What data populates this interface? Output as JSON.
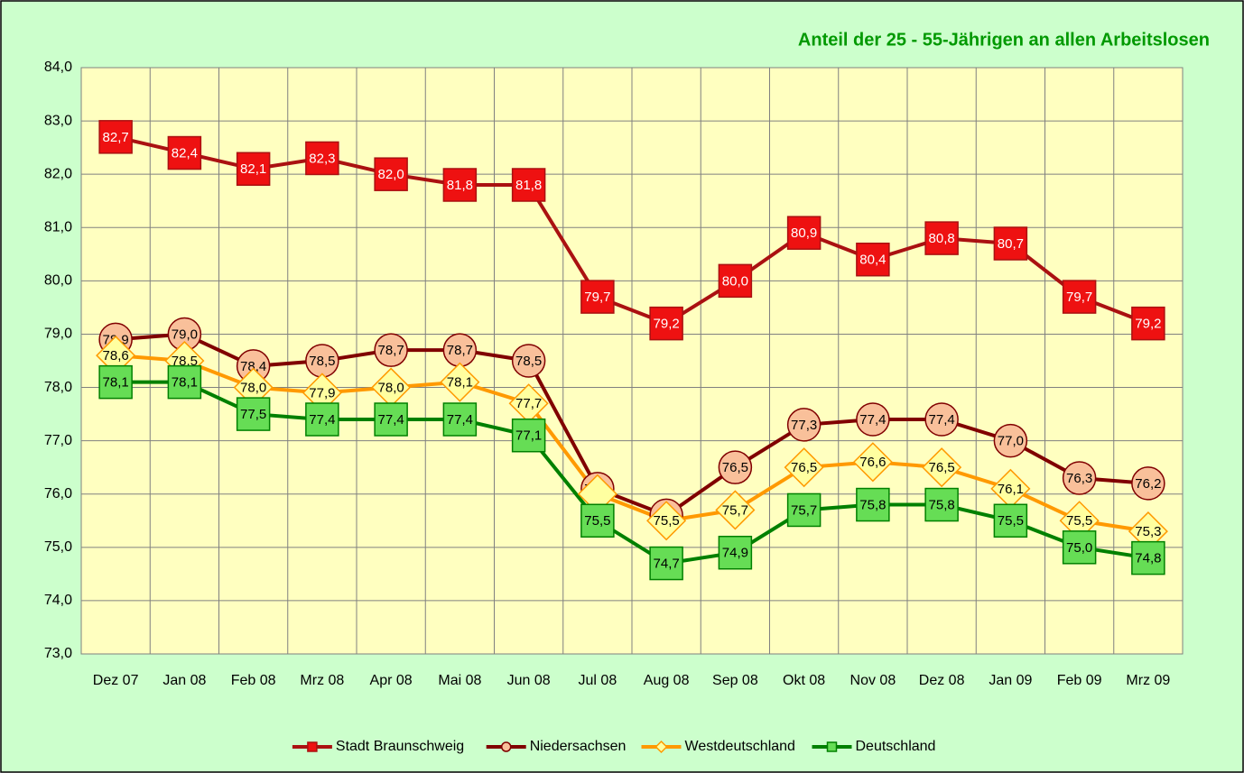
{
  "chart_data": {
    "type": "line",
    "title": "Anteil der 25 - 55-Jährigen an allen Arbeitslosen",
    "categories": [
      "Dez 07",
      "Jan 08",
      "Feb 08",
      "Mrz 08",
      "Apr 08",
      "Mai 08",
      "Jun 08",
      "Jul 08",
      "Aug 08",
      "Sep 08",
      "Okt 08",
      "Nov 08",
      "Dez 08",
      "Jan 09",
      "Feb 09",
      "Mrz 09"
    ],
    "series": [
      {
        "name": "Stadt Braunschweig",
        "color": "#aa1111",
        "marker": "square",
        "marker_color": "#ee1111",
        "values": [
          82.7,
          82.4,
          82.1,
          82.3,
          82.0,
          81.8,
          81.8,
          79.7,
          79.2,
          80.0,
          80.9,
          80.4,
          80.8,
          80.7,
          79.7,
          79.2
        ],
        "value_labels": [
          "82,7",
          "82,4",
          "82,1",
          "82,3",
          "82,0",
          "81,8",
          "81,8",
          "79,7",
          "79,2",
          "80,0",
          "80,9",
          "80,4",
          "80,8",
          "80,7",
          "79,7",
          "79,2"
        ]
      },
      {
        "name": "Niedersachsen",
        "color": "#800000",
        "marker": "circle",
        "marker_color": "#f9c09a",
        "values": [
          78.9,
          79.0,
          78.4,
          78.5,
          78.7,
          78.7,
          78.5,
          76.1,
          75.6,
          76.5,
          77.3,
          77.4,
          77.4,
          77.0,
          76.3,
          76.2
        ],
        "value_labels": [
          "78,9",
          "79,0",
          "78,4",
          "78,5",
          "78,7",
          "78,7",
          "78,5",
          "76,1",
          null,
          "76,5",
          "77,3",
          "77,4",
          "77,4",
          "77,0",
          "76,3",
          "76,2"
        ]
      },
      {
        "name": "Westdeutschland",
        "color": "#ff9900",
        "marker": "diamond",
        "marker_color": "#ffffa0",
        "values": [
          78.6,
          78.5,
          78.0,
          77.9,
          78.0,
          78.1,
          77.7,
          76.0,
          75.5,
          75.7,
          76.5,
          76.6,
          76.5,
          76.1,
          75.5,
          75.3
        ],
        "value_labels": [
          "78,6",
          "78,5",
          "78,0",
          "77,9",
          "78,0",
          "78,1",
          "77,7",
          null,
          "75,5",
          "75,7",
          "76,5",
          "76,6",
          "76,5",
          "76,1",
          "75,5",
          "75,3"
        ]
      },
      {
        "name": "Deutschland",
        "color": "#008000",
        "marker": "square",
        "marker_color": "#66dd55",
        "values": [
          78.1,
          78.1,
          77.5,
          77.4,
          77.4,
          77.4,
          77.1,
          75.5,
          74.7,
          74.9,
          75.7,
          75.8,
          75.8,
          75.5,
          75.0,
          74.8
        ],
        "value_labels": [
          "78,1",
          "78,1",
          "77,5",
          "77,4",
          "77,4",
          "77,4",
          "77,1",
          "75,5",
          "74,7",
          "74,9",
          "75,7",
          "75,8",
          "75,8",
          "75,5",
          "75,0",
          "74,8"
        ]
      }
    ],
    "ylim": [
      73,
      84
    ],
    "yticks": [
      {
        "value": 73,
        "label": "73,0"
      },
      {
        "value": 74,
        "label": "74,0"
      },
      {
        "value": 75,
        "label": "75,0"
      },
      {
        "value": 76,
        "label": "76,0"
      },
      {
        "value": 77,
        "label": "77,0"
      },
      {
        "value": 78,
        "label": "78,0"
      },
      {
        "value": 79,
        "label": "79,0"
      },
      {
        "value": 80,
        "label": "80,0"
      },
      {
        "value": 81,
        "label": "81,0"
      },
      {
        "value": 82,
        "label": "82,0"
      },
      {
        "value": 83,
        "label": "83,0"
      },
      {
        "value": 84,
        "label": "84,0"
      }
    ],
    "grid": true,
    "legend": "bottom"
  }
}
